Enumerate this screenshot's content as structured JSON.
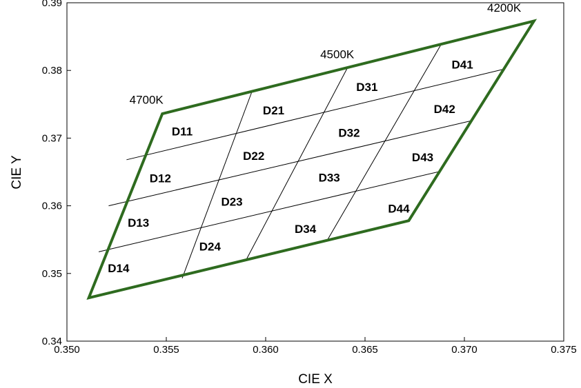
{
  "chart_data": {
    "type": "scatter",
    "xlabel": "CIE X",
    "ylabel": "CIE Y",
    "xlim": [
      0.35,
      0.375
    ],
    "ylim": [
      0.34,
      0.39
    ],
    "xticks": [
      "0.350",
      "0.355",
      "0.360",
      "0.365",
      "0.370",
      "0.375"
    ],
    "yticks": [
      "0.34",
      "0.35",
      "0.36",
      "0.37",
      "0.38",
      "0.39"
    ],
    "grid": false,
    "outline_color": "#2e6b1f",
    "outline": [
      {
        "x": 0.3548,
        "y": 0.3736
      },
      {
        "x": 0.3735,
        "y": 0.3873
      },
      {
        "x": 0.3672,
        "y": 0.3578
      },
      {
        "x": 0.3511,
        "y": 0.3464
      }
    ],
    "grid_lines": [
      {
        "x1": 0.353,
        "y1": 0.3668,
        "x2": 0.372,
        "y2": 0.3802
      },
      {
        "x1": 0.3521,
        "y1": 0.36,
        "x2": 0.3704,
        "y2": 0.3726
      },
      {
        "x1": 0.3516,
        "y1": 0.3532,
        "x2": 0.3688,
        "y2": 0.3651
      },
      {
        "x1": 0.3593,
        "y1": 0.3768,
        "x2": 0.3558,
        "y2": 0.3493
      },
      {
        "x1": 0.3641,
        "y1": 0.3803,
        "x2": 0.359,
        "y2": 0.3519
      },
      {
        "x1": 0.3688,
        "y1": 0.3837,
        "x2": 0.3631,
        "y2": 0.3549
      }
    ],
    "cct_labels": [
      {
        "text": "4700K",
        "x": 0.354,
        "y": 0.3757
      },
      {
        "text": "4500K",
        "x": 0.3636,
        "y": 0.3824
      },
      {
        "text": "4200K",
        "x": 0.372,
        "y": 0.3893
      }
    ],
    "bins": [
      {
        "name": "D11",
        "x": 0.3558,
        "y": 0.371
      },
      {
        "name": "D21",
        "x": 0.3604,
        "y": 0.3741
      },
      {
        "name": "D31",
        "x": 0.3651,
        "y": 0.3776
      },
      {
        "name": "D41",
        "x": 0.3699,
        "y": 0.3809
      },
      {
        "name": "D12",
        "x": 0.3547,
        "y": 0.3641
      },
      {
        "name": "D22",
        "x": 0.3594,
        "y": 0.3674
      },
      {
        "name": "D32",
        "x": 0.3642,
        "y": 0.3708
      },
      {
        "name": "D42",
        "x": 0.369,
        "y": 0.3743
      },
      {
        "name": "D13",
        "x": 0.3536,
        "y": 0.3575
      },
      {
        "name": "D23",
        "x": 0.3583,
        "y": 0.3606
      },
      {
        "name": "D33",
        "x": 0.3632,
        "y": 0.3642
      },
      {
        "name": "D43",
        "x": 0.3679,
        "y": 0.3672
      },
      {
        "name": "D14",
        "x": 0.3526,
        "y": 0.3508
      },
      {
        "name": "D24",
        "x": 0.3572,
        "y": 0.354
      },
      {
        "name": "D34",
        "x": 0.362,
        "y": 0.3566
      },
      {
        "name": "D44",
        "x": 0.3667,
        "y": 0.3596
      }
    ]
  }
}
